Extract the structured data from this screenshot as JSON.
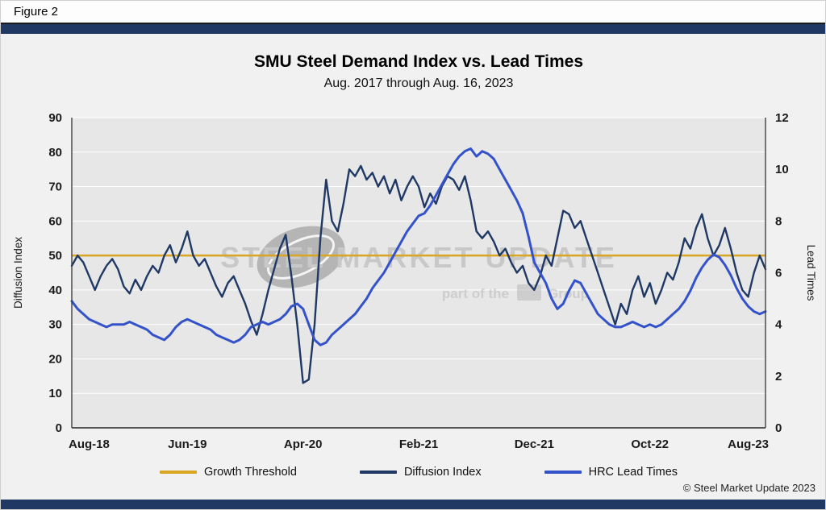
{
  "figure_label": "Figure 2",
  "brand_color": "#1F3864",
  "copyright": "© Steel Market Update 2023",
  "watermark": {
    "line1": "STEEL MARKET UPDATE",
    "line2_prefix": "part of the",
    "line2_suffix": "Group"
  },
  "chart_data": {
    "type": "line",
    "title": "SMU Steel Demand Index vs. Lead Times",
    "subtitle": "Aug. 2017 through Aug. 16, 2023",
    "grid": "horizontal",
    "legend_position": "bottom",
    "x_axis": {
      "tick_labels": [
        "Aug-18",
        "Jun-19",
        "Apr-20",
        "Feb-21",
        "Dec-21",
        "Oct-22",
        "Aug-23"
      ],
      "tick_positions_months": [
        0,
        10,
        20,
        30,
        40,
        50,
        60
      ],
      "range_months": [
        0,
        60
      ]
    },
    "left_axis": {
      "label": "Diffusion Index",
      "min": 0,
      "max": 90,
      "tick_step": 10
    },
    "right_axis": {
      "label": "Lead Times",
      "min": 0,
      "max": 12,
      "tick_step": 2
    },
    "threshold": {
      "name": "Growth Threshold",
      "axis": "left",
      "value": 50,
      "color": "#D9A522"
    },
    "series": [
      {
        "name": "Diffusion Index",
        "axis": "left",
        "color": "#1F3864",
        "x_start": 0,
        "x_step": 0.5,
        "values": [
          47,
          50,
          48,
          44,
          40,
          44,
          47,
          49,
          46,
          41,
          39,
          43,
          40,
          44,
          47,
          45,
          50,
          53,
          48,
          52,
          57,
          50,
          47,
          49,
          45,
          41,
          38,
          42,
          44,
          40,
          36,
          31,
          27,
          33,
          40,
          46,
          52,
          56,
          44,
          30,
          13,
          14,
          30,
          55,
          72,
          60,
          57,
          65,
          75,
          73,
          76,
          72,
          74,
          70,
          73,
          68,
          72,
          66,
          70,
          73,
          70,
          64,
          68,
          65,
          70,
          73,
          72,
          69,
          73,
          66,
          57,
          55,
          57,
          54,
          50,
          52,
          48,
          45,
          47,
          42,
          40,
          44,
          50,
          47,
          55,
          63,
          62,
          58,
          60,
          55,
          50,
          45,
          40,
          35,
          30,
          36,
          33,
          40,
          44,
          38,
          42,
          36,
          40,
          45,
          43,
          48,
          55,
          52,
          58,
          62,
          55,
          50,
          53,
          58,
          52,
          45,
          40,
          38,
          45,
          50,
          46
        ]
      },
      {
        "name": "HRC Lead Times",
        "axis": "right",
        "color": "#3452C9",
        "x_start": 0,
        "x_step": 0.5,
        "values": [
          4.9,
          4.6,
          4.4,
          4.2,
          4.1,
          4.0,
          3.9,
          4.0,
          4.0,
          4.0,
          4.1,
          4.0,
          3.9,
          3.8,
          3.6,
          3.5,
          3.4,
          3.6,
          3.9,
          4.1,
          4.2,
          4.1,
          4.0,
          3.9,
          3.8,
          3.6,
          3.5,
          3.4,
          3.3,
          3.4,
          3.6,
          3.9,
          4.0,
          4.1,
          4.0,
          4.1,
          4.2,
          4.4,
          4.7,
          4.8,
          4.6,
          4.0,
          3.4,
          3.2,
          3.3,
          3.6,
          3.8,
          4.0,
          4.2,
          4.4,
          4.7,
          5.0,
          5.4,
          5.7,
          6.0,
          6.4,
          6.8,
          7.2,
          7.6,
          7.9,
          8.2,
          8.3,
          8.6,
          9.0,
          9.4,
          9.8,
          10.2,
          10.5,
          10.7,
          10.8,
          10.5,
          10.7,
          10.6,
          10.4,
          10.0,
          9.6,
          9.2,
          8.8,
          8.3,
          7.4,
          6.4,
          6.0,
          5.6,
          5.0,
          4.6,
          4.8,
          5.3,
          5.7,
          5.6,
          5.2,
          4.8,
          4.4,
          4.2,
          4.0,
          3.9,
          3.9,
          4.0,
          4.1,
          4.0,
          3.9,
          4.0,
          3.9,
          4.0,
          4.2,
          4.4,
          4.6,
          4.9,
          5.3,
          5.8,
          6.2,
          6.5,
          6.7,
          6.6,
          6.3,
          5.9,
          5.4,
          5.0,
          4.7,
          4.5,
          4.4,
          4.5
        ]
      }
    ]
  }
}
